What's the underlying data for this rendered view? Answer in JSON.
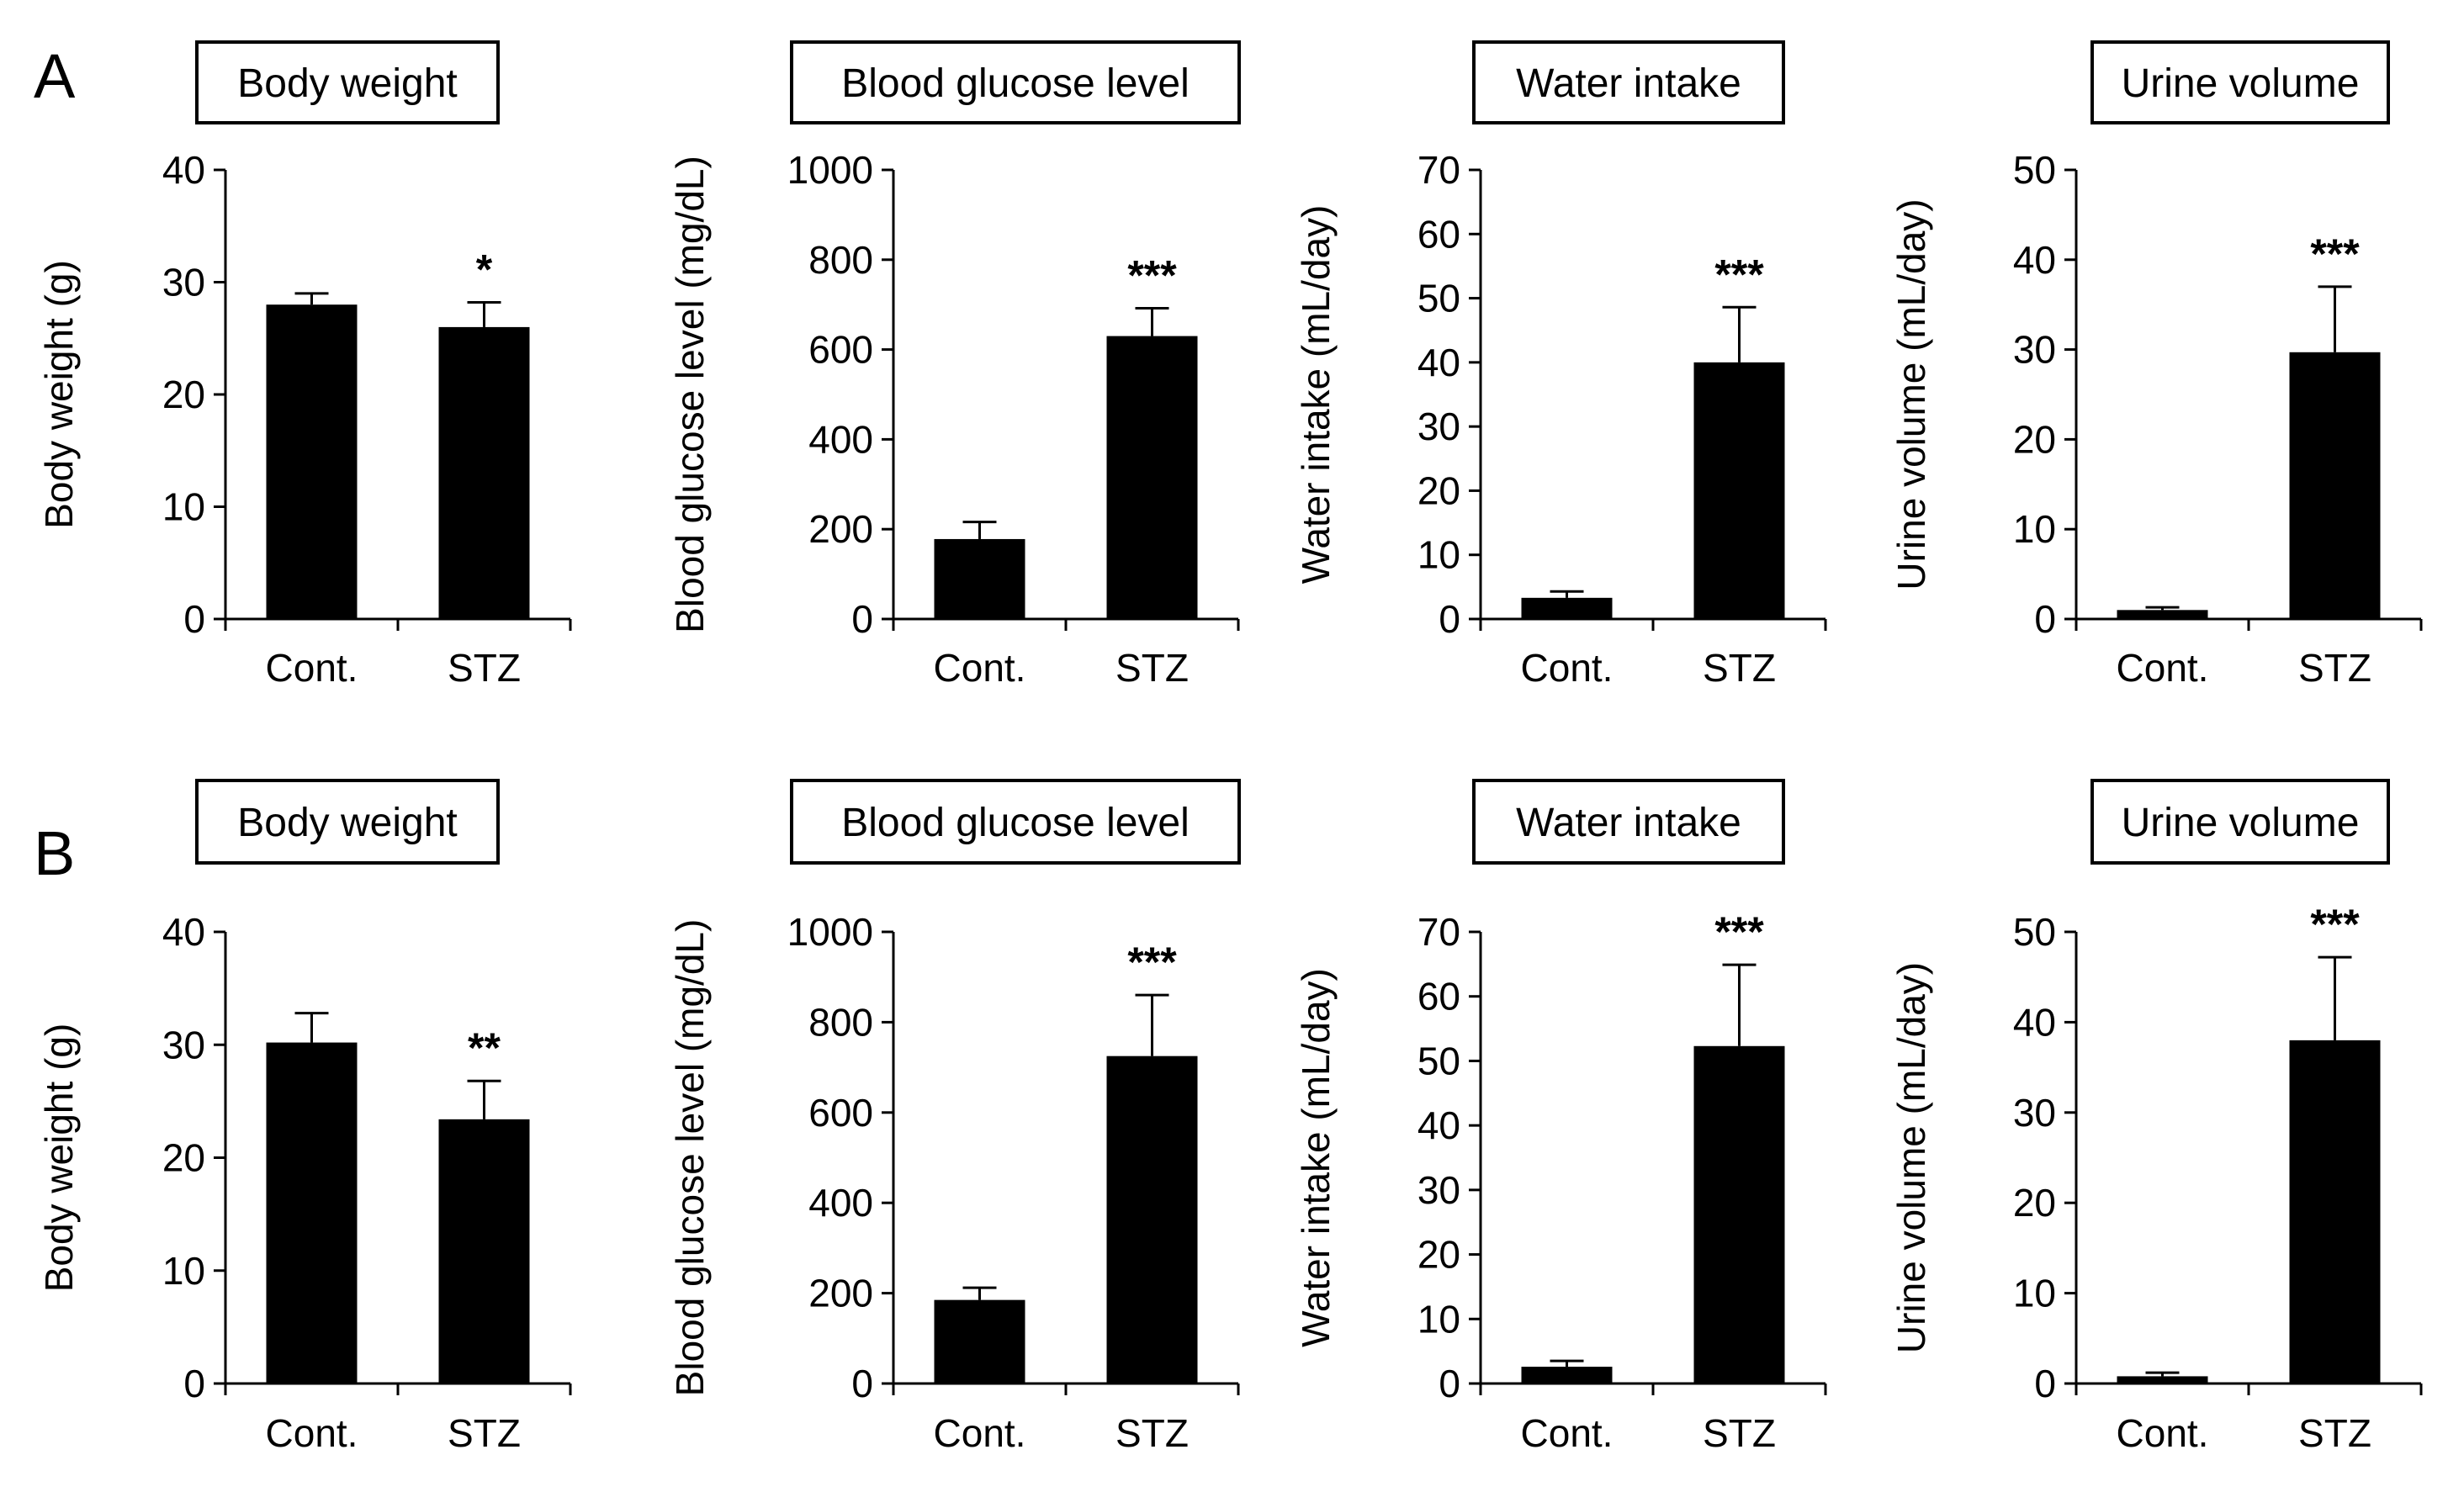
{
  "panels": [
    {
      "letter": "A",
      "charts": [
        {
          "type": "bar",
          "title": "Body weight",
          "ylabel": "Body weight (g)",
          "ylim": [
            0,
            40
          ],
          "yticks": [
            0,
            10,
            20,
            30,
            40
          ],
          "categories": [
            "Cont.",
            "STZ"
          ],
          "values": [
            28,
            26
          ],
          "errors": [
            1.0,
            2.2
          ],
          "significance": [
            "",
            "*"
          ]
        },
        {
          "type": "bar",
          "title": "Blood glucose level",
          "ylabel": "Blood glucose level (mg/dL)",
          "ylim": [
            0,
            1000
          ],
          "yticks": [
            0,
            200,
            400,
            600,
            800,
            1000
          ],
          "categories": [
            "Cont.",
            "STZ"
          ],
          "values": [
            178,
            630
          ],
          "errors": [
            38,
            62
          ],
          "significance": [
            "",
            "***"
          ]
        },
        {
          "type": "bar",
          "title": "Water intake",
          "ylabel": "Water intake (mL/day)",
          "ylim": [
            0,
            70
          ],
          "yticks": [
            0,
            10,
            20,
            30,
            40,
            50,
            60,
            70
          ],
          "categories": [
            "Cont.",
            "STZ"
          ],
          "values": [
            3.3,
            40
          ],
          "errors": [
            1.0,
            8.6
          ],
          "significance": [
            "",
            "***"
          ]
        },
        {
          "type": "bar",
          "title": "Urine volume",
          "ylabel": "Urine volume (mL/day)",
          "ylim": [
            0,
            50
          ],
          "yticks": [
            0,
            10,
            20,
            30,
            40,
            50
          ],
          "categories": [
            "Cont.",
            "STZ"
          ],
          "values": [
            1.0,
            29.7
          ],
          "errors": [
            0.3,
            7.3
          ],
          "significance": [
            "",
            "***"
          ]
        }
      ]
    },
    {
      "letter": "B",
      "charts": [
        {
          "type": "bar",
          "title": "Body weight",
          "ylabel": "Body weight (g)",
          "ylim": [
            0,
            40
          ],
          "yticks": [
            0,
            10,
            20,
            30,
            40
          ],
          "categories": [
            "Cont.",
            "STZ"
          ],
          "values": [
            30.2,
            23.4
          ],
          "errors": [
            2.6,
            3.4
          ],
          "significance": [
            "",
            "**"
          ]
        },
        {
          "type": "bar",
          "title": "Blood glucose level",
          "ylabel": "Blood glucose level (mg/dL)",
          "ylim": [
            0,
            1000
          ],
          "yticks": [
            0,
            200,
            400,
            600,
            800,
            1000
          ],
          "categories": [
            "Cont.",
            "STZ"
          ],
          "values": [
            185,
            725
          ],
          "errors": [
            27,
            135
          ],
          "significance": [
            "",
            "***"
          ]
        },
        {
          "type": "bar",
          "title": "Water intake",
          "ylabel": "Water intake (mL/day)",
          "ylim": [
            0,
            70
          ],
          "yticks": [
            0,
            10,
            20,
            30,
            40,
            50,
            60,
            70
          ],
          "categories": [
            "Cont.",
            "STZ"
          ],
          "values": [
            2.6,
            52.3
          ],
          "errors": [
            0.9,
            12.6
          ],
          "significance": [
            "",
            "***"
          ]
        },
        {
          "type": "bar",
          "title": "Urine volume",
          "ylabel": "Urine volume (mL/day)",
          "ylim": [
            0,
            50
          ],
          "yticks": [
            0,
            10,
            20,
            30,
            40,
            50
          ],
          "categories": [
            "Cont.",
            "STZ"
          ],
          "values": [
            0.8,
            38
          ],
          "errors": [
            0.4,
            9.2
          ],
          "significance": [
            "",
            "***"
          ]
        }
      ]
    }
  ],
  "chart_data": [
    {
      "type": "bar",
      "title": "Body weight",
      "panel": "A",
      "xlabel": "",
      "ylabel": "Body weight (g)",
      "ylim": [
        0,
        40
      ],
      "categories": [
        "Cont.",
        "STZ"
      ],
      "values": [
        28,
        26
      ],
      "errors": [
        1.0,
        2.2
      ],
      "annotations": [
        "",
        "*"
      ]
    },
    {
      "type": "bar",
      "title": "Blood glucose level",
      "panel": "A",
      "xlabel": "",
      "ylabel": "Blood glucose level (mg/dL)",
      "ylim": [
        0,
        1000
      ],
      "categories": [
        "Cont.",
        "STZ"
      ],
      "values": [
        178,
        630
      ],
      "errors": [
        38,
        62
      ],
      "annotations": [
        "",
        "***"
      ]
    },
    {
      "type": "bar",
      "title": "Water intake",
      "panel": "A",
      "xlabel": "",
      "ylabel": "Water intake (mL/day)",
      "ylim": [
        0,
        70
      ],
      "categories": [
        "Cont.",
        "STZ"
      ],
      "values": [
        3.3,
        40
      ],
      "errors": [
        1.0,
        8.6
      ],
      "annotations": [
        "",
        "***"
      ]
    },
    {
      "type": "bar",
      "title": "Urine volume",
      "panel": "A",
      "xlabel": "",
      "ylabel": "Urine volume (mL/day)",
      "ylim": [
        0,
        50
      ],
      "categories": [
        "Cont.",
        "STZ"
      ],
      "values": [
        1.0,
        29.7
      ],
      "errors": [
        0.3,
        7.3
      ],
      "annotations": [
        "",
        "***"
      ]
    },
    {
      "type": "bar",
      "title": "Body weight",
      "panel": "B",
      "xlabel": "",
      "ylabel": "Body weight (g)",
      "ylim": [
        0,
        40
      ],
      "categories": [
        "Cont.",
        "STZ"
      ],
      "values": [
        30.2,
        23.4
      ],
      "errors": [
        2.6,
        3.4
      ],
      "annotations": [
        "",
        "**"
      ]
    },
    {
      "type": "bar",
      "title": "Blood glucose level",
      "panel": "B",
      "xlabel": "",
      "ylabel": "Blood glucose level (mg/dL)",
      "ylim": [
        0,
        1000
      ],
      "categories": [
        "Cont.",
        "STZ"
      ],
      "values": [
        185,
        725
      ],
      "errors": [
        27,
        135
      ],
      "annotations": [
        "",
        "***"
      ]
    },
    {
      "type": "bar",
      "title": "Water intake",
      "panel": "B",
      "xlabel": "",
      "ylabel": "Water intake (mL/day)",
      "ylim": [
        0,
        70
      ],
      "categories": [
        "Cont.",
        "STZ"
      ],
      "values": [
        2.6,
        52.3
      ],
      "errors": [
        0.9,
        12.6
      ],
      "annotations": [
        "",
        "***"
      ]
    },
    {
      "type": "bar",
      "title": "Urine volume",
      "panel": "B",
      "xlabel": "",
      "ylabel": "Urine volume (mL/day)",
      "ylim": [
        0,
        50
      ],
      "categories": [
        "Cont.",
        "STZ"
      ],
      "values": [
        0.8,
        38
      ],
      "errors": [
        0.4,
        9.2
      ],
      "annotations": [
        "",
        "***"
      ]
    }
  ],
  "colors": {
    "bar": "#000000",
    "axis": "#000000",
    "background": "#ffffff"
  }
}
